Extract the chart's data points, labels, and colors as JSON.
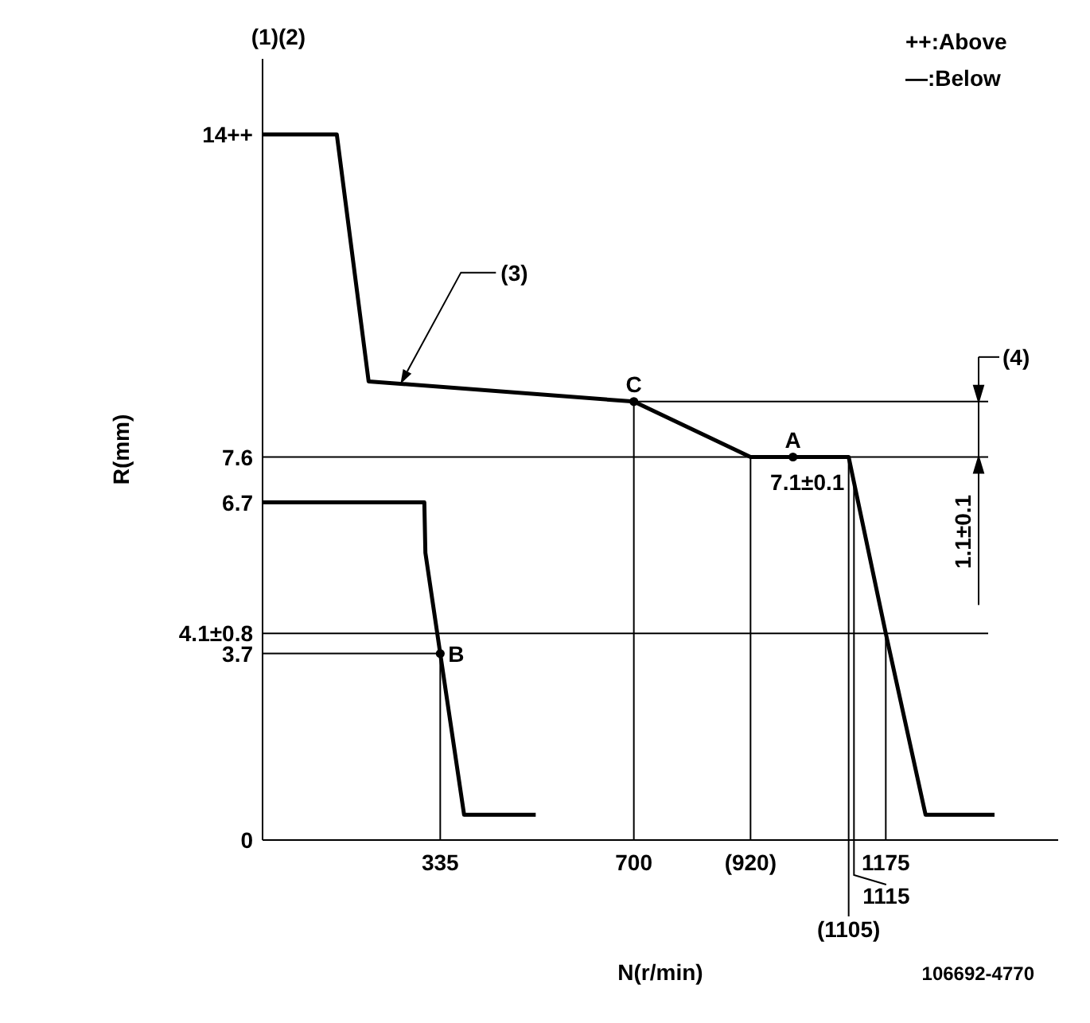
{
  "chart_data": {
    "type": "line",
    "xlabel": "N(r/min)",
    "ylabel": "R(mm)",
    "xlim": [
      0,
      1500
    ],
    "xticks": [
      335,
      700,
      {
        "value": 920,
        "label": "(920)"
      },
      1175
    ],
    "ylim": [
      0,
      15.5
    ],
    "yticks": [
      0,
      3.7,
      {
        "value": 4.1,
        "label": "4.1±0.8"
      },
      6.7,
      7.6,
      {
        "value": 14,
        "label": "14++"
      }
    ],
    "marker": "none",
    "series": [
      {
        "color": "#000000",
        "x": [
          0,
          140,
          200,
          700,
          920,
          1105,
          1115,
          1175,
          1250,
          1380
        ],
        "values": [
          14,
          14,
          9.1,
          8.7,
          7.6,
          7.6,
          7.1,
          4.1,
          0.5,
          0.5
        ]
      },
      {
        "color": "#000000",
        "x": [
          0,
          305,
          307,
          335,
          380,
          515
        ],
        "values": [
          6.7,
          6.7,
          5.7,
          3.7,
          0.5,
          0.5
        ]
      },
      {
        "type": "scatter",
        "color": "#000000",
        "marker": "circle",
        "x": [
          335,
          700,
          1000
        ],
        "values": [
          3.7,
          8.7,
          7.6
        ]
      }
    ],
    "ref_lines": [
      {
        "axis": "x",
        "value": 335,
        "color": "#000000"
      },
      {
        "axis": "x",
        "value": 700,
        "color": "#000000"
      },
      {
        "axis": "x",
        "value": 920,
        "color": "#000000"
      },
      {
        "axis": "x",
        "value": 1105,
        "color": "#000000"
      },
      {
        "axis": "x",
        "value": 1115,
        "color": "#000000"
      },
      {
        "axis": "x",
        "value": 1175,
        "color": "#000000"
      },
      {
        "axis": "y",
        "value": 8.7,
        "color": "#000000"
      },
      {
        "axis": "y",
        "value": 7.6,
        "color": "#000000"
      },
      {
        "axis": "y",
        "value": 4.1,
        "color": "#000000"
      },
      {
        "axis": "y",
        "value": 3.7,
        "color": "#000000"
      }
    ],
    "annotations": [
      "(1)(2)",
      "++:Above",
      "—:Below",
      {
        "text": "A",
        "x": 1000,
        "y": 7.6
      },
      {
        "text": "B",
        "x": 335,
        "y": 3.7
      },
      {
        "text": "C",
        "x": 700,
        "y": 8.7
      },
      {
        "text": "(3)",
        "x": 260,
        "y": 9.05
      },
      {
        "text": "7.1±0.1",
        "x": 1115,
        "y": 7.1
      },
      {
        "text": "1115",
        "x": 1115,
        "y": 0
      },
      {
        "text": "(1105)",
        "x": 1105,
        "y": 0
      },
      "(4)",
      "1.1±0.1",
      "106692-4770"
    ]
  }
}
